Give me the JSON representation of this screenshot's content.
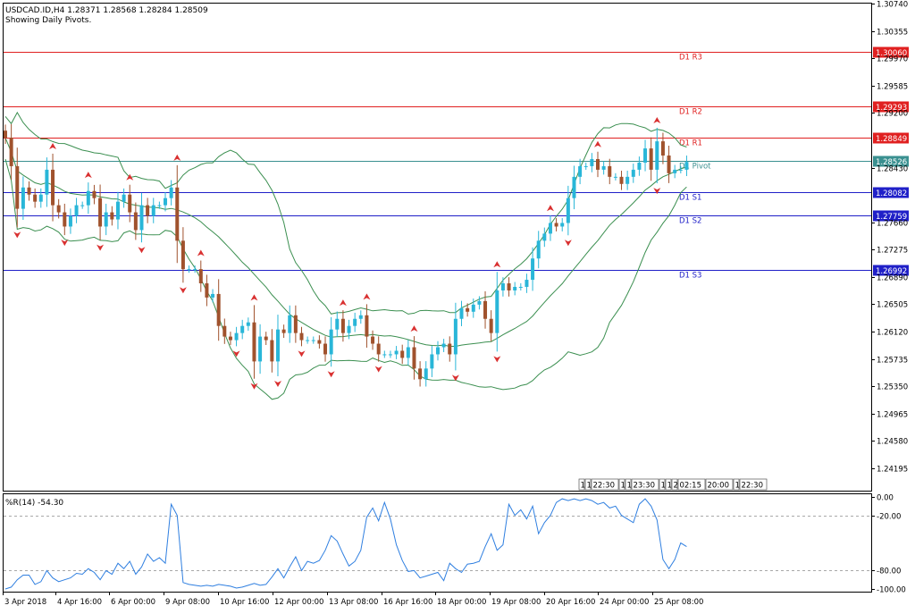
{
  "header": {
    "symbol_line": "USDCAD.ID,H4  1.28371 1.28568 1.28284 1.28509",
    "subtitle": "Showing Daily Pivots."
  },
  "indicator": {
    "label": "%R(14) -54.30",
    "ticks": [
      "0.00",
      "-20.00",
      "-80.00",
      "-100.00"
    ],
    "levels": [
      -20,
      -80
    ],
    "range": [
      -100,
      0
    ],
    "color": "#2f7fe0"
  },
  "price_axis": {
    "ticks": [
      "1.30740",
      "1.30355",
      "1.29970",
      "1.29585",
      "1.29200",
      "1.28430",
      "1.27660",
      "1.27275",
      "1.26890",
      "1.26505",
      "1.26120",
      "1.25735",
      "1.25350",
      "1.24965",
      "1.24580",
      "1.24195"
    ]
  },
  "time_axis": {
    "labels": [
      "3 Apr 2018",
      "4 Apr 16:00",
      "6 Apr 00:00",
      "9 Apr 08:00",
      "10 Apr 16:00",
      "12 Apr 00:00",
      "13 Apr 08:00",
      "16 Apr 16:00",
      "18 Apr 00:00",
      "19 Apr 08:00",
      "20 Apr 16:00",
      "24 Apr 00:00",
      "25 Apr 08:00"
    ]
  },
  "session_markers": [
    "1",
    "1",
    "22:30",
    "1",
    "1",
    "23:30",
    "1",
    "1",
    "2",
    "02:15",
    "20:00",
    "1",
    "22:30"
  ],
  "colors": {
    "bull": "#29b6d8",
    "bear": "#a0522d",
    "bands": "#3b8f50",
    "resistance": "#e02020",
    "support": "#2020c8",
    "pivot": "#3a9090",
    "arrow": "#d93030"
  },
  "pivots": [
    {
      "name": "D1 R3",
      "value": 1.3006,
      "label": "1.30060",
      "kind": "resistance"
    },
    {
      "name": "D1 R2",
      "value": 1.29293,
      "label": "1.29293",
      "kind": "resistance"
    },
    {
      "name": "D1 R1",
      "value": 1.28849,
      "label": "1.28849",
      "kind": "resistance"
    },
    {
      "name": "D1 Pivot",
      "value": 1.28526,
      "label": "1.28526",
      "kind": "pivot"
    },
    {
      "name": "D1 S1",
      "value": 1.28082,
      "label": "1.28082",
      "kind": "support"
    },
    {
      "name": "D1 S2",
      "value": 1.27759,
      "label": "1.27759",
      "kind": "support"
    },
    {
      "name": "D1 S3",
      "value": 1.26992,
      "label": "1.26992",
      "kind": "support"
    }
  ],
  "chart_data": {
    "type": "candlestick",
    "symbol": "USDCAD.ID",
    "timeframe": "H4",
    "y_range": [
      1.2388,
      1.3074
    ],
    "ohlc_last": {
      "open": 1.28371,
      "high": 1.28568,
      "low": 1.28284,
      "close": 1.28509
    },
    "closes": [
      1.2885,
      1.2845,
      1.2785,
      1.2815,
      1.2805,
      1.2795,
      1.2805,
      1.284,
      1.279,
      1.278,
      1.276,
      1.2775,
      1.279,
      1.279,
      1.281,
      1.28,
      1.276,
      1.278,
      1.277,
      1.2795,
      1.2805,
      1.278,
      1.2755,
      1.279,
      1.2775,
      1.279,
      1.279,
      1.28,
      1.2815,
      1.274,
      1.27,
      1.27,
      1.27,
      1.268,
      1.266,
      1.2665,
      1.262,
      1.2605,
      1.26,
      1.261,
      1.262,
      1.2625,
      1.257,
      1.2605,
      1.26,
      1.257,
      1.2615,
      1.261,
      1.2635,
      1.261,
      1.26,
      1.26,
      1.26,
      1.2595,
      1.258,
      1.2615,
      1.263,
      1.261,
      1.262,
      1.263,
      1.2635,
      1.2605,
      1.2595,
      1.258,
      1.258,
      1.258,
      1.2585,
      1.2575,
      1.259,
      1.256,
      1.2545,
      1.256,
      1.258,
      1.259,
      1.2595,
      1.258,
      1.263,
      1.2645,
      1.264,
      1.265,
      1.2655,
      1.263,
      1.261,
      1.267,
      1.268,
      1.267,
      1.2675,
      1.2675,
      1.2685,
      1.2715,
      1.274,
      1.275,
      1.2765,
      1.276,
      1.2765,
      1.28,
      1.283,
      1.2845,
      1.2845,
      1.2855,
      1.284,
      1.2845,
      1.283,
      1.283,
      1.282,
      1.283,
      1.284,
      1.285,
      1.287,
      1.284,
      1.288,
      1.286,
      1.2835,
      1.284,
      1.284,
      1.2851
    ],
    "indicator_series": [
      {
        "name": "%R(14)",
        "values": [
          -100,
          -98,
          -90,
          -85,
          -85,
          -95,
          -92,
          -80,
          -88,
          -92,
          -90,
          -88,
          -83,
          -84,
          -78,
          -82,
          -90,
          -80,
          -84,
          -72,
          -78,
          -70,
          -84,
          -76,
          -62,
          -70,
          -66,
          -72,
          -8,
          -20,
          -93,
          -95,
          -96,
          -97,
          -96,
          -97,
          -95,
          -96,
          -97,
          -99,
          -98,
          -96,
          -94,
          -96,
          -95,
          -87,
          -78,
          -88,
          -76,
          -65,
          -80,
          -70,
          -72,
          -69,
          -58,
          -42,
          -48,
          -62,
          -75,
          -70,
          -58,
          -22,
          -12,
          -26,
          -6,
          -24,
          -52,
          -69,
          -81,
          -80,
          -88,
          -86,
          -84,
          -82,
          -91,
          -72,
          -78,
          -82,
          -73,
          -72,
          -70,
          -54,
          -40,
          -58,
          -52,
          -8,
          -20,
          -14,
          -24,
          -10,
          -40,
          -28,
          -20,
          -6,
          -2,
          -4,
          -2,
          -4,
          -2,
          -4,
          -8,
          -6,
          -12,
          -10,
          -20,
          -24,
          -28,
          -8,
          -2,
          -10,
          -25,
          -68,
          -78,
          -68,
          -50,
          -54
        ]
      }
    ]
  }
}
